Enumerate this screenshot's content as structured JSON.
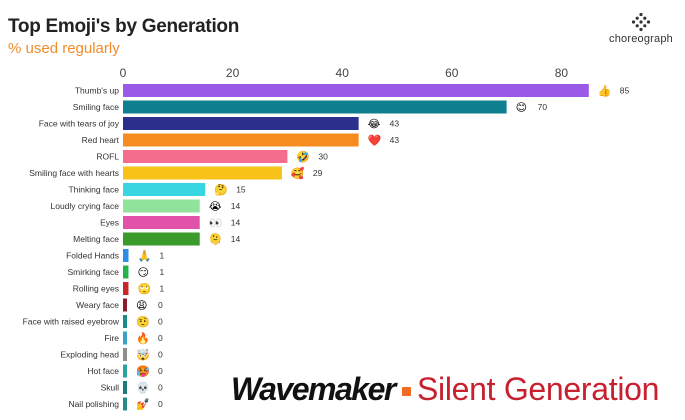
{
  "header": {
    "title": "Top Emoji's by Generation",
    "subtitle": "% used regularly"
  },
  "brand": {
    "name": "choreograph"
  },
  "footer": {
    "agency": "Wavemaker",
    "generation": "Silent Generation"
  },
  "colors": {
    "title": "#222222",
    "subtitle": "#f08c2a",
    "agency_dot": "#f26b21",
    "generation_text": "#c8202f"
  },
  "chart_data": {
    "type": "bar",
    "orientation": "horizontal",
    "title": "Top Emoji's by Generation",
    "subtitle": "% used regularly",
    "xlim": [
      0,
      90
    ],
    "xticks": [
      0,
      20,
      40,
      60,
      80
    ],
    "grid": false,
    "legend": "none",
    "categories": [
      "Thumb's up",
      "Smiling face",
      "Face with tears of joy",
      "Red heart",
      "ROFL",
      "Smiling face with hearts",
      "Thinking face",
      "Loudly crying face",
      "Eyes",
      "Melting face",
      "Folded Hands",
      "Smirking face",
      "Rolling eyes",
      "Weary face",
      "Face with raised eyebrow",
      "Fire",
      "Exploding head",
      "Hot face",
      "Skull",
      "Nail polishing"
    ],
    "values": [
      85,
      70,
      43,
      43,
      30,
      29,
      15,
      14,
      14,
      14,
      1,
      1,
      1,
      0,
      0,
      0,
      0,
      0,
      0,
      0
    ],
    "colors": [
      "#9b59e8",
      "#0f7f8f",
      "#2d2f8c",
      "#f68b1f",
      "#f56d8d",
      "#f8c318",
      "#37d6e0",
      "#8fe39a",
      "#e053a8",
      "#3a9a2a",
      "#2b8fe6",
      "#27b34a",
      "#c62828",
      "#8a1c2b",
      "#1f8a8a",
      "#3aa2c8",
      "#8e8e8e",
      "#2aa2a2",
      "#1f7a7a",
      "#2a8a8a"
    ],
    "emoji": [
      "👍",
      "😊",
      "😂",
      "❤️",
      "🤣",
      "🥰",
      "🤔",
      "😭",
      "👀",
      "🫠",
      "🙏",
      "😏",
      "🙄",
      "😩",
      "🤨",
      "🔥",
      "🤯",
      "🥵",
      "💀",
      "💅"
    ]
  }
}
